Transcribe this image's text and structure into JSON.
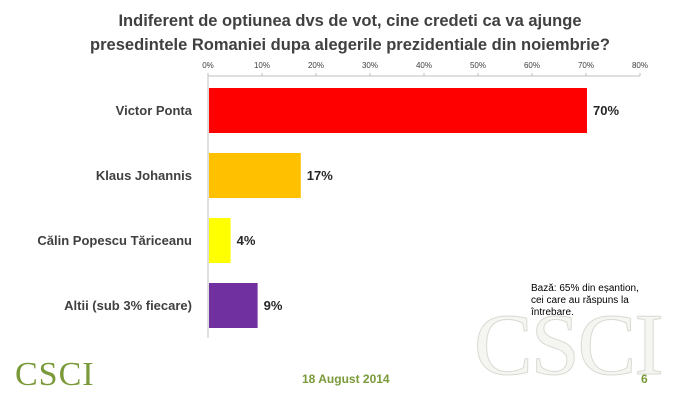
{
  "chart_data": {
    "type": "bar",
    "orientation": "horizontal",
    "title_lines": [
      "Indiferent de optiunea dvs de vot, cine credeti ca va ajunge",
      "presedintele Romaniei dupa alegerile prezidentiale din noiembrie?"
    ],
    "categories": [
      "Victor Ponta",
      "Klaus Johannis",
      "Călin Popescu Tăriceanu",
      "Altii (sub 3% fiecare)"
    ],
    "values": [
      70,
      17,
      4,
      9
    ],
    "value_labels": [
      "70%",
      "17%",
      "4%",
      "9%"
    ],
    "colors": [
      "#ff0000",
      "#ffc000",
      "#ffff00",
      "#7030a0"
    ],
    "xlim": [
      0,
      80
    ],
    "xticks": [
      0,
      10,
      20,
      30,
      40,
      50,
      60,
      70,
      80
    ],
    "xtick_labels": [
      "0%",
      "10%",
      "20%",
      "30%",
      "40%",
      "50%",
      "60%",
      "70%",
      "80%"
    ],
    "axis_position": "top",
    "grid": false
  },
  "note_lines": [
    "Bază: 65% din eșantion,",
    "cei care au răspuns la",
    "întrebare."
  ],
  "watermark": "CSCI",
  "logo": "CSCI",
  "date": "18 August 2014",
  "page_number": "6"
}
